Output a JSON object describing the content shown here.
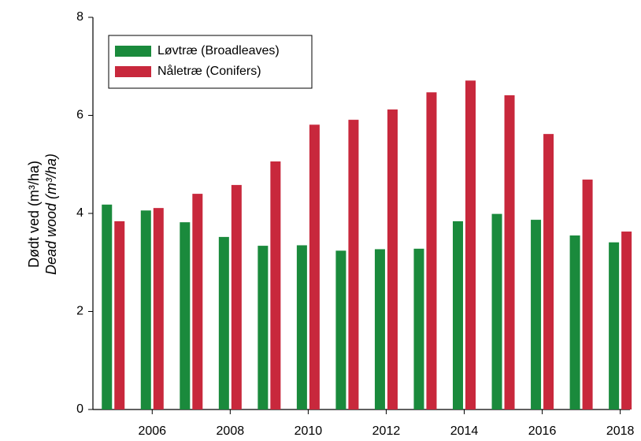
{
  "chart_data": {
    "type": "bar",
    "y_label": "Dødt ved (m³/ha)",
    "y_label_2": "Dead wood (m³/ha)",
    "x": [
      2005,
      2006,
      2007,
      2008,
      2009,
      2010,
      2011,
      2012,
      2013,
      2014,
      2015,
      2016,
      2017,
      2018
    ],
    "xlim": [
      2004.48,
      2018.25
    ],
    "xticks": [
      2006,
      2008,
      2010,
      2012,
      2014,
      2016,
      2018
    ],
    "ylim": [
      0,
      8
    ],
    "yticks": [
      0,
      2,
      4,
      6,
      8
    ],
    "legend": "upper left",
    "series": [
      {
        "name": "Løvtræ (Broadleaves)",
        "color": "#1a8a3c",
        "values": [
          4.18,
          4.06,
          3.82,
          3.52,
          3.34,
          3.35,
          3.24,
          3.27,
          3.28,
          3.84,
          3.99,
          3.87,
          3.55,
          3.41
        ]
      },
      {
        "name": "Nåletræ (Conifers)",
        "color": "#c8283c",
        "values": [
          3.84,
          4.11,
          4.4,
          4.58,
          5.06,
          5.81,
          5.91,
          6.12,
          6.47,
          6.71,
          6.41,
          5.62,
          4.69,
          3.63
        ]
      }
    ]
  }
}
